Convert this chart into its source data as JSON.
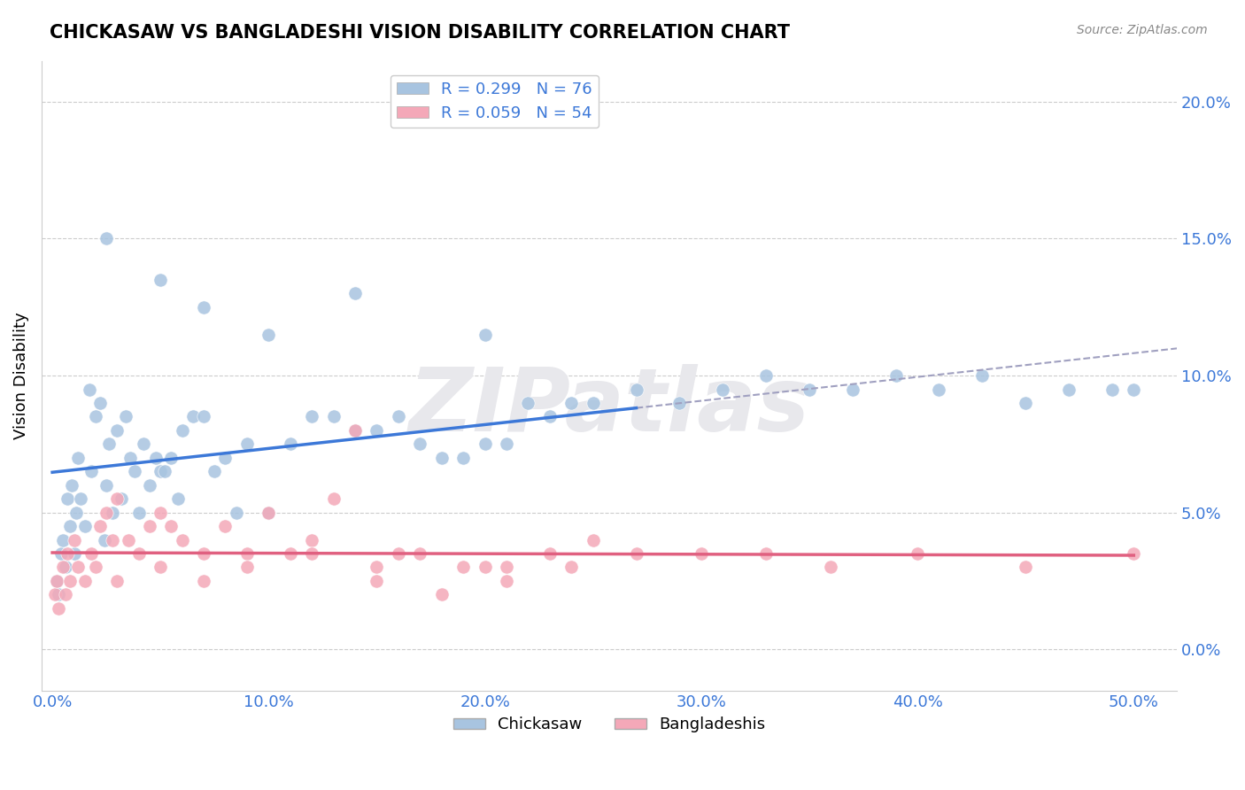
{
  "title": "CHICKASAW VS BANGLADESHI VISION DISABILITY CORRELATION CHART",
  "source": "Source: ZipAtlas.com",
  "xlabel_ticks": [
    "0.0%",
    "10.0%",
    "20.0%",
    "30.0%",
    "40.0%",
    "50.0%"
  ],
  "xlabel_vals": [
    0.0,
    10.0,
    20.0,
    30.0,
    40.0,
    50.0
  ],
  "ylabel": "Vision Disability",
  "ylabel_ticks": [
    "0.0%",
    "5.0%",
    "10.0%",
    "15.0%",
    "20.0%"
  ],
  "ylabel_vals": [
    0.0,
    5.0,
    10.0,
    15.0,
    20.0
  ],
  "xlim": [
    -0.5,
    52
  ],
  "ylim": [
    -1.5,
    21.5
  ],
  "chickasaw_color": "#a8c4e0",
  "bangladeshi_color": "#f4a8b8",
  "blue_line_color": "#3c78d8",
  "pink_line_color": "#e06080",
  "dashed_line_color": "#a0a0c0",
  "legend1_label_r": "R = 0.299",
  "legend1_label_n": "N = 76",
  "legend2_label_r": "R = 0.059",
  "legend2_label_n": "N = 54",
  "legend_color_blue": "#a8c4e0",
  "legend_color_pink": "#f4a8b8",
  "legend_text_color": "#3c78d8",
  "chickasaw_x": [
    0.2,
    0.3,
    0.4,
    0.5,
    0.6,
    0.7,
    0.8,
    0.9,
    1.0,
    1.1,
    1.2,
    1.3,
    1.5,
    1.7,
    1.8,
    2.0,
    2.2,
    2.4,
    2.5,
    2.6,
    2.8,
    3.0,
    3.2,
    3.4,
    3.6,
    3.8,
    4.0,
    4.2,
    4.5,
    4.8,
    5.0,
    5.2,
    5.5,
    5.8,
    6.0,
    6.5,
    7.0,
    7.5,
    8.0,
    8.5,
    9.0,
    10.0,
    11.0,
    12.0,
    13.0,
    14.0,
    15.0,
    16.0,
    17.0,
    18.0,
    19.0,
    20.0,
    21.0,
    22.0,
    23.0,
    24.0,
    25.0,
    27.0,
    29.0,
    31.0,
    33.0,
    35.0,
    37.0,
    39.0,
    41.0,
    43.0,
    45.0,
    47.0,
    49.0,
    50.0,
    14.0,
    20.0,
    2.5,
    5.0,
    7.0,
    10.0
  ],
  "chickasaw_y": [
    2.5,
    2.0,
    3.5,
    4.0,
    3.0,
    5.5,
    4.5,
    6.0,
    3.5,
    5.0,
    7.0,
    5.5,
    4.5,
    9.5,
    6.5,
    8.5,
    9.0,
    4.0,
    6.0,
    7.5,
    5.0,
    8.0,
    5.5,
    8.5,
    7.0,
    6.5,
    5.0,
    7.5,
    6.0,
    7.0,
    6.5,
    6.5,
    7.0,
    5.5,
    8.0,
    8.5,
    8.5,
    6.5,
    7.0,
    5.0,
    7.5,
    5.0,
    7.5,
    8.5,
    8.5,
    8.0,
    8.0,
    8.5,
    7.5,
    7.0,
    7.0,
    7.5,
    7.5,
    9.0,
    8.5,
    9.0,
    9.0,
    9.5,
    9.0,
    9.5,
    10.0,
    9.5,
    9.5,
    10.0,
    9.5,
    10.0,
    9.0,
    9.5,
    9.5,
    9.5,
    13.0,
    11.5,
    15.0,
    13.5,
    12.5,
    11.5
  ],
  "bangladeshi_x": [
    0.1,
    0.2,
    0.3,
    0.5,
    0.6,
    0.7,
    0.8,
    1.0,
    1.2,
    1.5,
    1.8,
    2.0,
    2.2,
    2.5,
    2.8,
    3.0,
    3.5,
    4.0,
    4.5,
    5.0,
    5.5,
    6.0,
    7.0,
    8.0,
    9.0,
    10.0,
    11.0,
    12.0,
    13.0,
    14.0,
    15.0,
    17.0,
    19.0,
    21.0,
    23.0,
    25.0,
    27.0,
    30.0,
    33.0,
    36.0,
    40.0,
    45.0,
    50.0,
    16.0,
    20.0,
    3.0,
    5.0,
    7.0,
    9.0,
    12.0,
    15.0,
    18.0,
    21.0,
    24.0
  ],
  "bangladeshi_y": [
    2.0,
    2.5,
    1.5,
    3.0,
    2.0,
    3.5,
    2.5,
    4.0,
    3.0,
    2.5,
    3.5,
    3.0,
    4.5,
    5.0,
    4.0,
    5.5,
    4.0,
    3.5,
    4.5,
    5.0,
    4.5,
    4.0,
    3.5,
    4.5,
    3.5,
    5.0,
    3.5,
    4.0,
    5.5,
    8.0,
    3.0,
    3.5,
    3.0,
    3.0,
    3.5,
    4.0,
    3.5,
    3.5,
    3.5,
    3.0,
    3.5,
    3.0,
    3.5,
    3.5,
    3.0,
    2.5,
    3.0,
    2.5,
    3.0,
    3.5,
    2.5,
    2.0,
    2.5,
    3.0
  ],
  "background_color": "#ffffff",
  "grid_color": "#cccccc",
  "watermark_text": "ZIPatlas",
  "watermark_color": "#e8e8ec"
}
